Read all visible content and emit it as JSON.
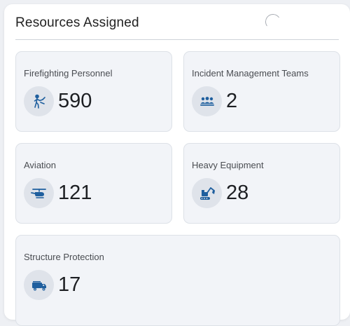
{
  "panel": {
    "title": "Resources Assigned"
  },
  "accent_color": "#1f5f9e",
  "cards": [
    {
      "label": "Firefighting Personnel",
      "value": "590",
      "icon": "firefighter-icon"
    },
    {
      "label": "Incident Management Teams",
      "value": "2",
      "icon": "team-icon"
    },
    {
      "label": "Aviation",
      "value": "121",
      "icon": "helicopter-icon"
    },
    {
      "label": "Heavy Equipment",
      "value": "28",
      "icon": "excavator-icon"
    },
    {
      "label": "Structure Protection",
      "value": "17",
      "icon": "fire-truck-icon"
    }
  ]
}
